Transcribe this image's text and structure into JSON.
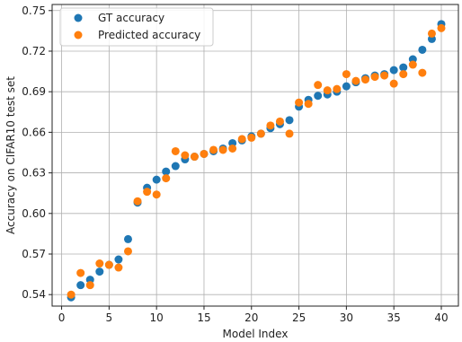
{
  "chart_data": {
    "type": "scatter",
    "xlabel": "Model Index",
    "ylabel": "Accuracy on CIFAR10 test set",
    "xlim": [
      -1.0,
      41.8
    ],
    "ylim": [
      0.5315,
      0.7545
    ],
    "xticks": [
      0,
      5,
      10,
      15,
      20,
      25,
      30,
      35,
      40
    ],
    "xtick_labels": [
      "0",
      "5",
      "10",
      "15",
      "20",
      "25",
      "30",
      "35",
      "40"
    ],
    "yticks": [
      0.54,
      0.57,
      0.6,
      0.63,
      0.66,
      0.69,
      0.72,
      0.75
    ],
    "ytick_labels": [
      "0.54",
      "0.57",
      "0.60",
      "0.63",
      "0.66",
      "0.69",
      "0.72",
      "0.75"
    ],
    "grid": true,
    "legend_position": "top-left",
    "series": [
      {
        "name": "GT accuracy",
        "color": "#1f77b4",
        "x": [
          1,
          2,
          3,
          4,
          5,
          6,
          7,
          8,
          9,
          10,
          11,
          12,
          13,
          14,
          15,
          16,
          17,
          18,
          19,
          20,
          21,
          22,
          23,
          24,
          25,
          26,
          27,
          28,
          29,
          30,
          31,
          32,
          33,
          34,
          35,
          36,
          37,
          38,
          39,
          40
        ],
        "y": [
          0.538,
          0.547,
          0.551,
          0.557,
          0.562,
          0.566,
          0.581,
          0.608,
          0.619,
          0.625,
          0.631,
          0.635,
          0.64,
          0.642,
          0.644,
          0.646,
          0.648,
          0.652,
          0.654,
          0.657,
          0.659,
          0.663,
          0.666,
          0.669,
          0.679,
          0.684,
          0.687,
          0.688,
          0.69,
          0.694,
          0.697,
          0.7,
          0.702,
          0.703,
          0.706,
          0.708,
          0.714,
          0.721,
          0.729,
          0.74
        ]
      },
      {
        "name": "Predicted accuracy",
        "color": "#ff7f0e",
        "x": [
          1,
          2,
          3,
          4,
          5,
          6,
          7,
          8,
          9,
          10,
          11,
          12,
          13,
          14,
          15,
          16,
          17,
          18,
          19,
          20,
          21,
          22,
          23,
          24,
          25,
          26,
          27,
          28,
          29,
          30,
          31,
          32,
          33,
          34,
          35,
          36,
          37,
          38,
          39,
          40
        ],
        "y": [
          0.54,
          0.556,
          0.547,
          0.563,
          0.562,
          0.56,
          0.572,
          0.609,
          0.616,
          0.614,
          0.626,
          0.646,
          0.643,
          0.642,
          0.644,
          0.647,
          0.647,
          0.648,
          0.655,
          0.656,
          0.659,
          0.665,
          0.668,
          0.659,
          0.682,
          0.681,
          0.695,
          0.691,
          0.692,
          0.703,
          0.698,
          0.699,
          0.701,
          0.702,
          0.696,
          0.703,
          0.71,
          0.704,
          0.733,
          0.737
        ]
      }
    ]
  }
}
